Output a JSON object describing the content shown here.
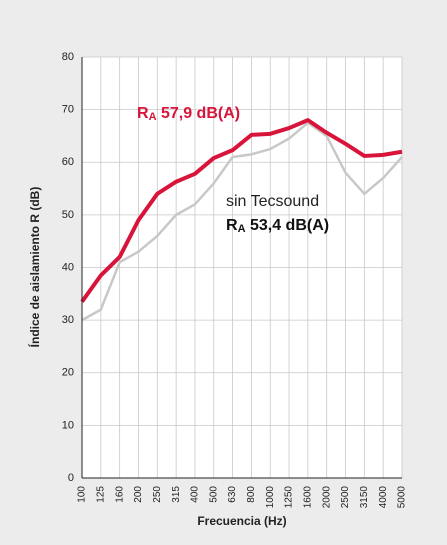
{
  "chart_data": {
    "type": "line",
    "x_label": "Frecuencia (Hz)",
    "y_label": "Índice de aislamiento R (dB)",
    "categories": [
      "100",
      "125",
      "160",
      "200",
      "250",
      "315",
      "400",
      "500",
      "630",
      "800",
      "1000",
      "1250",
      "1600",
      "2000",
      "2500",
      "3150",
      "4000",
      "5000"
    ],
    "series": [
      {
        "color": "#c8c8c8",
        "width": 2.5,
        "name": "sin Tecsound",
        "values": [
          30,
          32,
          41,
          43,
          46,
          50,
          52,
          56,
          61,
          61.5,
          62.5,
          64.5,
          67.5,
          65,
          58,
          54,
          57,
          61
        ]
      },
      {
        "color": "#d9143a",
        "width": 4,
        "values": [
          33.5,
          38.5,
          42,
          49,
          54,
          56.3,
          57.8,
          60.8,
          62.3,
          65.2,
          65.4,
          66.5,
          68,
          65.6,
          63.5,
          61.2,
          61.4,
          62
        ]
      }
    ],
    "annotations": [
      {
        "symbol": "R",
        "sub": "A",
        "text": " 57,9 dB(A)",
        "color": "#d9143a"
      },
      {
        "symbol": "R",
        "sub": "A",
        "text": " 53,4 dB(A)",
        "color": "#111111"
      }
    ],
    "ylim": [
      0,
      80
    ],
    "yticks": [
      0,
      10,
      20,
      30,
      40,
      50,
      60,
      70,
      80
    ],
    "grid": true,
    "background": "#ececec"
  }
}
